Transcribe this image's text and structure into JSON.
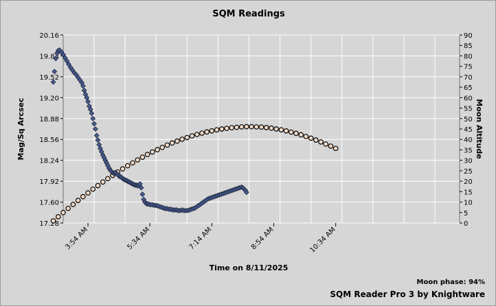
{
  "chart_data": {
    "type": "scatter",
    "title": "SQM Readings",
    "xlabel": "Time on 8/11/2025",
    "ylabel_left": "Mag/Sq Arcsec",
    "ylabel_right": "Moon Altitude",
    "x_ticks": [
      "3:54 AM",
      "5:34 AM",
      "7:14 AM",
      "8:54 AM",
      "10:34 AM"
    ],
    "x_range_min": [
      194,
      834
    ],
    "y_left_ticks": [
      "17.28",
      "17.60",
      "17.92",
      "18.24",
      "18.56",
      "18.88",
      "19.20",
      "19.52",
      "19.84",
      "20.16"
    ],
    "y_left_range": [
      17.28,
      20.16
    ],
    "y_right_ticks": [
      "0",
      "5",
      "10",
      "15",
      "20",
      "25",
      "30",
      "35",
      "40",
      "45",
      "50",
      "55",
      "60",
      "65",
      "70",
      "75",
      "80",
      "85",
      "90"
    ],
    "y_right_range": [
      0,
      90
    ],
    "grid": true,
    "series": [
      {
        "name": "SQM",
        "color": "#4a5d8f",
        "marker": "diamond",
        "axis": "left",
        "points": [
          [
            178,
            19.44
          ],
          [
            180,
            19.6
          ],
          [
            182,
            19.8
          ],
          [
            184,
            19.88
          ],
          [
            186,
            19.92
          ],
          [
            188,
            19.93
          ],
          [
            191,
            19.9
          ],
          [
            194,
            19.86
          ],
          [
            197,
            19.81
          ],
          [
            200,
            19.76
          ],
          [
            203,
            19.71
          ],
          [
            206,
            19.66
          ],
          [
            209,
            19.62
          ],
          [
            212,
            19.58
          ],
          [
            215,
            19.55
          ],
          [
            218,
            19.51
          ],
          [
            221,
            19.47
          ],
          [
            224,
            19.43
          ],
          [
            226,
            19.38
          ],
          [
            228,
            19.31
          ],
          [
            230,
            19.25
          ],
          [
            232,
            19.2
          ],
          [
            234,
            19.14
          ],
          [
            236,
            19.07
          ],
          [
            238,
            19.02
          ],
          [
            240,
            18.96
          ],
          [
            242,
            18.88
          ],
          [
            244,
            18.8
          ],
          [
            246,
            18.72
          ],
          [
            248,
            18.62
          ],
          [
            250,
            18.55
          ],
          [
            252,
            18.48
          ],
          [
            254,
            18.42
          ],
          [
            256,
            18.37
          ],
          [
            258,
            18.32
          ],
          [
            260,
            18.28
          ],
          [
            262,
            18.24
          ],
          [
            264,
            18.2
          ],
          [
            266,
            18.16
          ],
          [
            268,
            18.12
          ],
          [
            270,
            18.09
          ],
          [
            272,
            18.07
          ],
          [
            274,
            18.05
          ],
          [
            276,
            18.04
          ],
          [
            278,
            18.05
          ],
          [
            280,
            18.04
          ],
          [
            282,
            18.02
          ],
          [
            284,
            18.0
          ],
          [
            286,
            17.99
          ],
          [
            288,
            17.98
          ],
          [
            290,
            17.96
          ],
          [
            292,
            17.95
          ],
          [
            294,
            17.94
          ],
          [
            296,
            17.93
          ],
          [
            298,
            17.92
          ],
          [
            300,
            17.91
          ],
          [
            302,
            17.9
          ],
          [
            304,
            17.89
          ],
          [
            306,
            17.88
          ],
          [
            308,
            17.87
          ],
          [
            310,
            17.86
          ],
          [
            312,
            17.86
          ],
          [
            314,
            17.85
          ],
          [
            316,
            17.86
          ],
          [
            318,
            17.88
          ],
          [
            320,
            17.82
          ],
          [
            322,
            17.72
          ],
          [
            324,
            17.64
          ],
          [
            326,
            17.6
          ],
          [
            328,
            17.58
          ],
          [
            330,
            17.57
          ],
          [
            332,
            17.57
          ],
          [
            335,
            17.56
          ],
          [
            338,
            17.56
          ],
          [
            341,
            17.55
          ],
          [
            344,
            17.55
          ],
          [
            347,
            17.54
          ],
          [
            350,
            17.53
          ],
          [
            353,
            17.52
          ],
          [
            356,
            17.51
          ],
          [
            359,
            17.5
          ],
          [
            362,
            17.5
          ],
          [
            365,
            17.49
          ],
          [
            368,
            17.49
          ],
          [
            371,
            17.48
          ],
          [
            374,
            17.48
          ],
          [
            377,
            17.48
          ],
          [
            380,
            17.47
          ],
          [
            383,
            17.47
          ],
          [
            386,
            17.48
          ],
          [
            389,
            17.47
          ],
          [
            392,
            17.47
          ],
          [
            395,
            17.47
          ],
          [
            398,
            17.48
          ],
          [
            401,
            17.49
          ],
          [
            404,
            17.5
          ],
          [
            407,
            17.51
          ],
          [
            410,
            17.53
          ],
          [
            413,
            17.55
          ],
          [
            416,
            17.57
          ],
          [
            419,
            17.59
          ],
          [
            422,
            17.61
          ],
          [
            425,
            17.63
          ],
          [
            428,
            17.65
          ],
          [
            431,
            17.66
          ],
          [
            434,
            17.67
          ],
          [
            437,
            17.68
          ],
          [
            440,
            17.69
          ],
          [
            443,
            17.7
          ],
          [
            446,
            17.71
          ],
          [
            449,
            17.72
          ],
          [
            452,
            17.73
          ],
          [
            455,
            17.74
          ],
          [
            458,
            17.75
          ],
          [
            461,
            17.76
          ],
          [
            464,
            17.77
          ],
          [
            467,
            17.78
          ],
          [
            470,
            17.79
          ],
          [
            473,
            17.8
          ],
          [
            476,
            17.81
          ],
          [
            479,
            17.82
          ],
          [
            482,
            17.83
          ],
          [
            484,
            17.82
          ],
          [
            486,
            17.8
          ],
          [
            488,
            17.78
          ],
          [
            490,
            17.75
          ]
        ]
      },
      {
        "name": "Moon Altitude",
        "color": "#f5dcc8",
        "marker": "circle",
        "axis": "right",
        "points": [
          [
            178,
            1.0
          ],
          [
            186,
            3.0
          ],
          [
            194,
            5.0
          ],
          [
            202,
            7.0
          ],
          [
            210,
            8.9
          ],
          [
            218,
            10.8
          ],
          [
            226,
            12.6
          ],
          [
            234,
            14.4
          ],
          [
            242,
            16.2
          ],
          [
            250,
            17.9
          ],
          [
            258,
            19.6
          ],
          [
            266,
            21.2
          ],
          [
            274,
            22.8
          ],
          [
            282,
            24.4
          ],
          [
            290,
            25.9
          ],
          [
            298,
            27.4
          ],
          [
            306,
            28.8
          ],
          [
            314,
            30.2
          ],
          [
            322,
            31.5
          ],
          [
            330,
            32.8
          ],
          [
            338,
            34.0
          ],
          [
            346,
            35.1
          ],
          [
            354,
            36.2
          ],
          [
            362,
            37.3
          ],
          [
            370,
            38.3
          ],
          [
            378,
            39.2
          ],
          [
            386,
            40.1
          ],
          [
            394,
            40.9
          ],
          [
            402,
            41.7
          ],
          [
            410,
            42.4
          ],
          [
            418,
            43.0
          ],
          [
            426,
            43.6
          ],
          [
            434,
            44.1
          ],
          [
            442,
            44.6
          ],
          [
            450,
            45.0
          ],
          [
            458,
            45.3
          ],
          [
            466,
            45.6
          ],
          [
            474,
            45.8
          ],
          [
            482,
            46.0
          ],
          [
            490,
            46.1
          ],
          [
            498,
            46.1
          ],
          [
            506,
            46.0
          ],
          [
            514,
            45.9
          ],
          [
            522,
            45.7
          ],
          [
            530,
            45.4
          ],
          [
            538,
            45.0
          ],
          [
            546,
            44.6
          ],
          [
            554,
            44.1
          ],
          [
            562,
            43.5
          ],
          [
            570,
            42.9
          ],
          [
            578,
            42.2
          ],
          [
            586,
            41.4
          ],
          [
            594,
            40.6
          ],
          [
            602,
            39.7
          ],
          [
            610,
            38.8
          ],
          [
            618,
            37.8
          ],
          [
            626,
            36.8
          ],
          [
            634,
            35.7
          ]
        ]
      }
    ]
  },
  "footer": {
    "moon_phase": "Moon phase: 94%",
    "credit": "SQM Reader Pro 3 by Knightware"
  }
}
